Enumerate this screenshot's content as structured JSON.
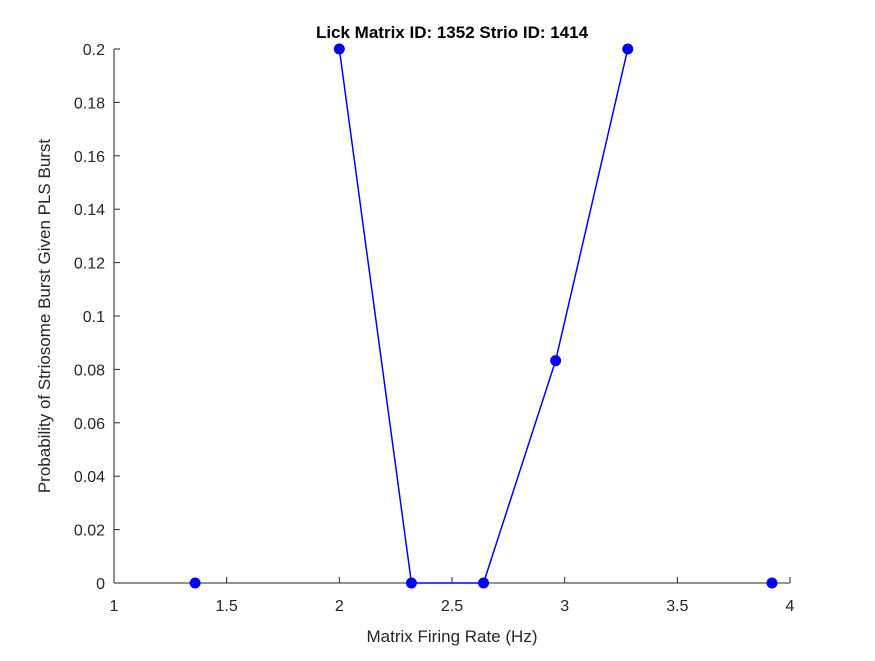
{
  "chart_data": {
    "type": "line",
    "title": "Lick Matrix ID: 1352 Strio ID: 1414",
    "xlabel": "Matrix Firing Rate (Hz)",
    "ylabel": "Probability of Striosome Burst Given PLS Burst",
    "xlim": [
      1,
      4
    ],
    "ylim": [
      0,
      0.2
    ],
    "xticks": [
      1,
      1.5,
      2,
      2.5,
      3,
      3.5,
      4
    ],
    "xtick_labels": [
      "1",
      "1.5",
      "2",
      "2.5",
      "3",
      "3.5",
      "4"
    ],
    "yticks": [
      0,
      0.02,
      0.04,
      0.06,
      0.08,
      0.1,
      0.12,
      0.14,
      0.16,
      0.18,
      0.2
    ],
    "ytick_labels": [
      "0",
      "0.02",
      "0.04",
      "0.06",
      "0.08",
      "0.1",
      "0.12",
      "0.14",
      "0.16",
      "0.18",
      "0.2"
    ],
    "grid": false,
    "color": "#0000ff",
    "series": [
      {
        "segments": [
          {
            "x": [
              1.36
            ],
            "y": [
              0
            ]
          },
          {
            "x": [
              2.0,
              2.32,
              2.64,
              2.96,
              3.28
            ],
            "y": [
              0.2,
              0,
              0,
              0.0833,
              0.2
            ]
          },
          {
            "x": [
              3.92
            ],
            "y": [
              0
            ]
          }
        ]
      }
    ]
  }
}
